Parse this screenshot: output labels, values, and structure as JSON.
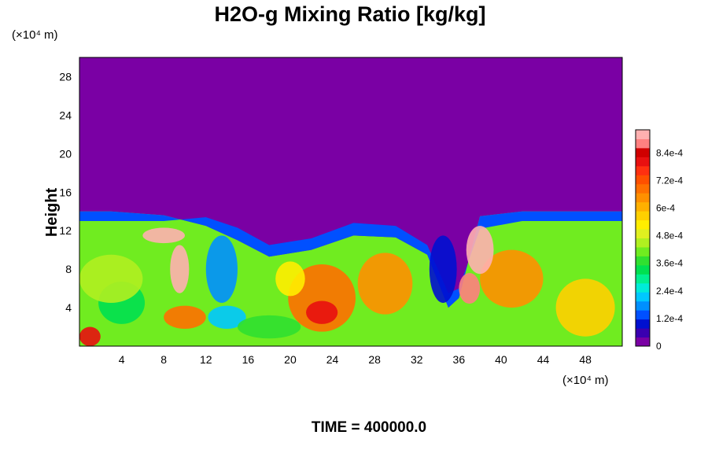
{
  "chart_data": {
    "type": "heatmap",
    "title": "H2O-g Mixing Ratio [kg/kg]",
    "ylabel": "Height",
    "x_unit": "(×10⁴ m)",
    "y_unit": "(×10⁴ m)",
    "x_ticks": [
      "4",
      "8",
      "12",
      "16",
      "20",
      "24",
      "28",
      "32",
      "36",
      "40",
      "44",
      "48"
    ],
    "y_ticks": [
      "4",
      "8",
      "12",
      "16",
      "20",
      "24",
      "28"
    ],
    "x_tick_values": [
      4,
      8,
      12,
      16,
      20,
      24,
      28,
      32,
      36,
      40,
      44,
      48
    ],
    "y_tick_values": [
      4,
      8,
      12,
      16,
      20,
      24,
      28
    ],
    "xlim": [
      0,
      51.5
    ],
    "ylim": [
      0,
      30
    ],
    "colorbar": {
      "labels": [
        "8.4e-4",
        "7.2e-4",
        "6e-4",
        "4.8e-4",
        "3.6e-4",
        "2.4e-4",
        "1.2e-4",
        "0"
      ],
      "label_values": [
        0.00084,
        0.00072,
        0.0006,
        0.00048,
        0.00036,
        0.00024,
        0.00012,
        0
      ],
      "min": 0,
      "max": 0.00094,
      "levels": 24,
      "colors": [
        "#7a00a4",
        "#3a00b0",
        "#0010d0",
        "#0050ff",
        "#0090ff",
        "#00c8ff",
        "#00ecd8",
        "#00f090",
        "#00e050",
        "#30e030",
        "#70ec20",
        "#b0f020",
        "#e0f020",
        "#ffee00",
        "#ffd000",
        "#ffb000",
        "#ff9000",
        "#ff7000",
        "#ff5000",
        "#ff3010",
        "#e81010",
        "#d00000",
        "#ff8080",
        "#ffb0b0"
      ]
    },
    "field_summary": {
      "upper_region_value": 0,
      "moist_layer_top_km_e4": 14
    },
    "time_label": "TIME = 400000.0"
  }
}
